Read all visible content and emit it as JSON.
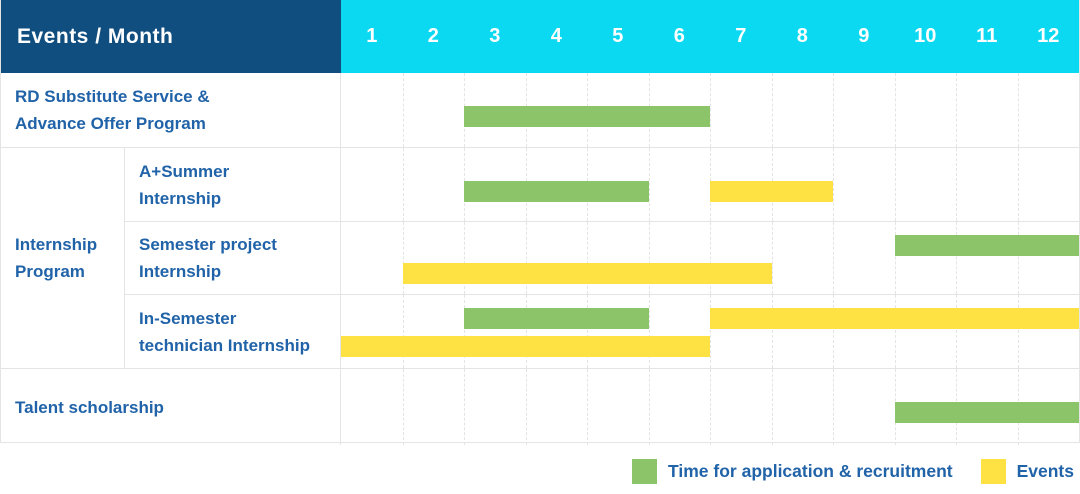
{
  "header": {
    "events_label": "Events / Month",
    "months": [
      "1",
      "2",
      "3",
      "4",
      "5",
      "6",
      "7",
      "8",
      "9",
      "10",
      "11",
      "12"
    ]
  },
  "groups": [
    {
      "label": "Internship\nProgram"
    }
  ],
  "legend": {
    "items": [
      {
        "kind": "application",
        "swatch": "#8cc46a",
        "label": "Time for application & recruitment"
      },
      {
        "kind": "event",
        "swatch": "#fee243",
        "label": "Events"
      }
    ]
  },
  "colors": {
    "header_bg": "#114e80",
    "month_bg": "#0bd9f1",
    "text_blue": "#2163a8",
    "green": "#8cc46a",
    "yellow": "#fee243",
    "grid": "#e4e4e4"
  },
  "chart_data": {
    "type": "gantt",
    "title": "Events / Month",
    "x_axis": {
      "label": "Month",
      "ticks": [
        1,
        2,
        3,
        4,
        5,
        6,
        7,
        8,
        9,
        10,
        11,
        12
      ],
      "range": [
        1,
        12
      ]
    },
    "grid": "dashed-vertical",
    "legend_position": "bottom-right",
    "bar_kinds": {
      "application": {
        "label": "Time for application & recruitment",
        "color": "#8cc46a"
      },
      "event": {
        "label": "Events",
        "color": "#fee243"
      }
    },
    "rows": [
      {
        "group": "",
        "label": "RD Substitute Service &\nAdvance Offer Program",
        "bars": [
          {
            "kind": "application",
            "start": 3,
            "end": 6,
            "lane": "center"
          }
        ]
      },
      {
        "group": "Internship Program",
        "label": "A+Summer\nInternship",
        "bars": [
          {
            "kind": "application",
            "start": 3,
            "end": 5,
            "lane": "center"
          },
          {
            "kind": "event",
            "start": 7,
            "end": 8,
            "lane": "center"
          }
        ]
      },
      {
        "group": "Internship Program",
        "label": "Semester project\nInternship",
        "bars": [
          {
            "kind": "application",
            "start": 10,
            "end": 12,
            "lane": "top"
          },
          {
            "kind": "event",
            "start": 2,
            "end": 7,
            "lane": "bottom"
          }
        ]
      },
      {
        "group": "Internship Program",
        "label": "In-Semester\ntechnician Internship",
        "bars": [
          {
            "kind": "application",
            "start": 3,
            "end": 5,
            "lane": "top"
          },
          {
            "kind": "event",
            "start": 7,
            "end": 12,
            "lane": "top"
          },
          {
            "kind": "event",
            "start": 1,
            "end": 6,
            "lane": "bottom"
          }
        ]
      },
      {
        "group": "",
        "label": "Talent scholarship",
        "bars": [
          {
            "kind": "application",
            "start": 10,
            "end": 12,
            "lane": "center"
          }
        ]
      }
    ]
  }
}
